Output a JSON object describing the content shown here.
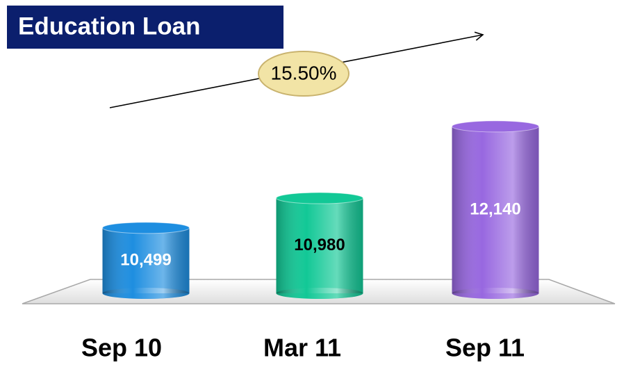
{
  "chart_data": {
    "type": "bar",
    "title": "Education Loan",
    "annotation": "15.50%",
    "categories": [
      "Sep 10",
      "Mar 11",
      "Sep 11"
    ],
    "values": [
      10499,
      10980,
      12140
    ],
    "value_labels": [
      "10,499",
      "10,980",
      "12,140"
    ],
    "colors": [
      "#1e8ee0",
      "#12c896",
      "#9868e0"
    ],
    "label_colors": [
      "#ffffff",
      "#000000",
      "#ffffff"
    ],
    "ylim": [
      9440,
      12600
    ]
  }
}
